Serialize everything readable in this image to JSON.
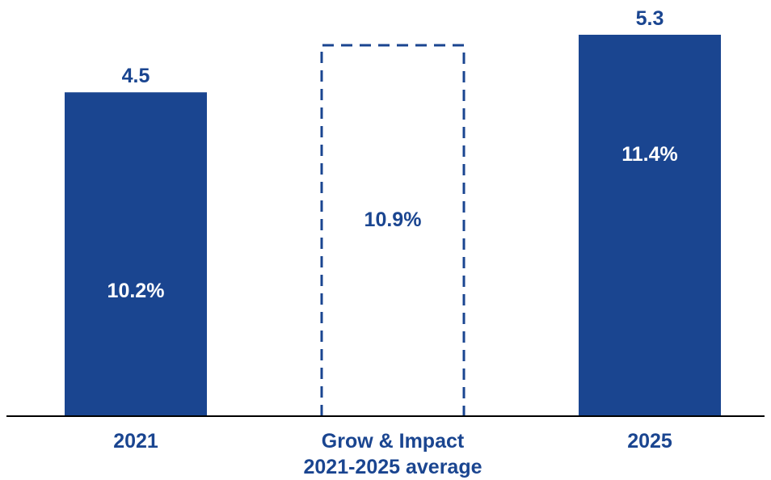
{
  "chart_data": {
    "type": "bar",
    "categories": [
      "2021",
      "Grow & Impact\n2021-2025 average",
      "2025"
    ],
    "values": [
      4.5,
      null,
      5.3
    ],
    "value_labels": [
      "4.5",
      "",
      "5.3"
    ],
    "inner_labels": [
      "10.2%",
      "10.9%",
      "11.4%"
    ],
    "bar_styles": [
      "solid",
      "dashed-outline",
      "solid"
    ],
    "ylim": [
      0,
      5.3
    ],
    "grid": false,
    "legend": "none",
    "title": "",
    "xlabel": "",
    "ylabel": ""
  },
  "colors": {
    "bar": "#1a4590",
    "value_label": "#1a4590",
    "inner_label_on_bar": "#ffffff",
    "inner_label_outline": "#1a4590",
    "axis": "#000000",
    "category_label": "#1a4590"
  }
}
